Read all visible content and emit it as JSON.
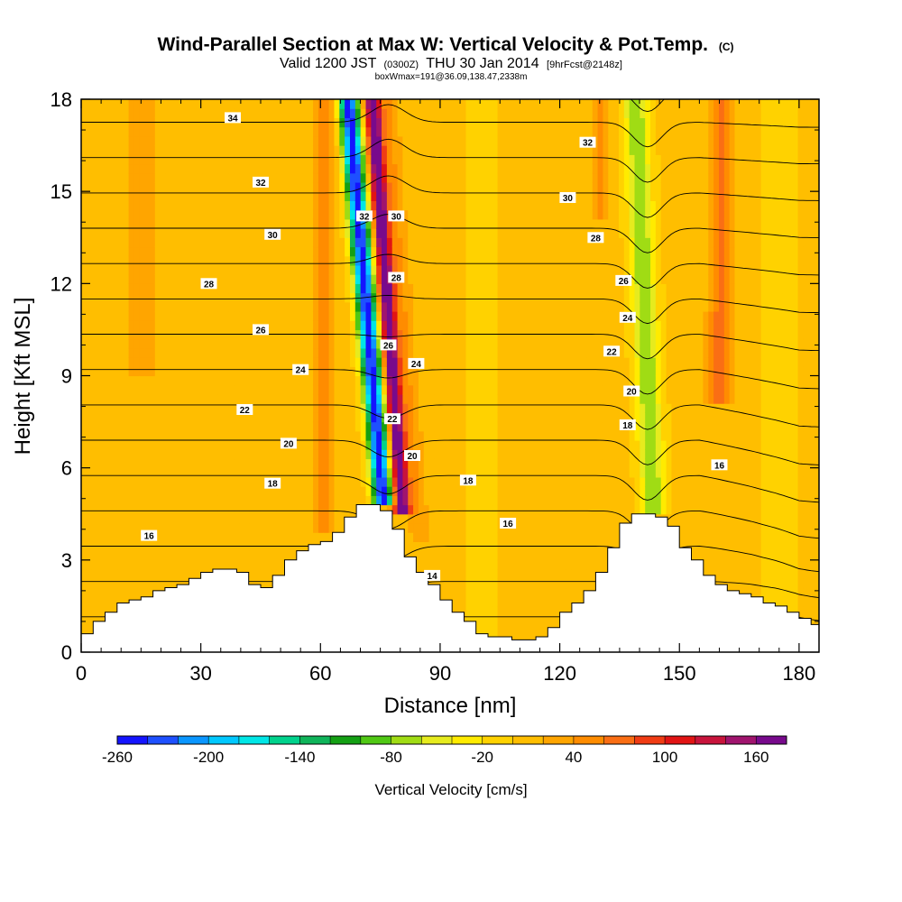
{
  "chart_data": {
    "type": "heatmap",
    "title": "Wind-Parallel Section at Max W: Vertical Velocity & Pot.Temp.",
    "title_mark": "(C)",
    "subtitle_parts": [
      "Valid 1200 JST",
      "(0300Z)",
      "THU 30 Jan 2014",
      "[9hrFcst@2148z]"
    ],
    "subtitle2": "boxWmax=191@36.09,138.47,2338m",
    "xlabel": "Distance [nm]",
    "ylabel": "Height [Kft MSL]",
    "xlim": [
      0,
      185
    ],
    "ylim": [
      0,
      18
    ],
    "x_ticks": [
      "0",
      "30",
      "60",
      "90",
      "120",
      "150",
      "180"
    ],
    "x_tick_values": [
      0,
      30,
      60,
      90,
      120,
      150,
      180
    ],
    "y_ticks": [
      "0",
      "3",
      "6",
      "9",
      "12",
      "15",
      "18"
    ],
    "y_tick_values": [
      0,
      3,
      6,
      9,
      12,
      15,
      18
    ],
    "colorbar": {
      "label": "Vertical Velocity [cm/s]",
      "min": -260,
      "max": 180,
      "step": 20,
      "tick_labels": [
        "-260",
        "-200",
        "-140",
        "-80",
        "-20",
        "40",
        "100",
        "160"
      ],
      "tick_values": [
        -260,
        -200,
        -140,
        -80,
        -20,
        40,
        100,
        160
      ],
      "colors": [
        "#1414ff",
        "#1e50ff",
        "#0a96ff",
        "#00c8ff",
        "#00e6e6",
        "#00d28c",
        "#0fb45a",
        "#14a014",
        "#50c814",
        "#a0dc14",
        "#e6eb1e",
        "#ffeb00",
        "#ffd200",
        "#ffbe00",
        "#ffa500",
        "#ff8c00",
        "#fa6e14",
        "#f03c14",
        "#e11414",
        "#c8143c",
        "#a0146e",
        "#780a8c"
      ]
    },
    "terrain_profile": {
      "x": [
        0,
        3,
        6,
        9,
        12,
        15,
        18,
        21,
        24,
        27,
        30,
        33,
        36,
        39,
        42,
        45,
        48,
        51,
        54,
        57,
        60,
        63,
        66,
        69,
        72,
        75,
        78,
        81,
        84,
        87,
        90,
        93,
        96,
        99,
        102,
        105,
        108,
        111,
        114,
        117,
        120,
        123,
        126,
        129,
        132,
        135,
        138,
        141,
        144,
        147,
        150,
        153,
        156,
        159,
        162,
        165,
        168,
        171,
        174,
        177,
        180,
        183,
        185
      ],
      "y": [
        0.6,
        1.0,
        1.3,
        1.6,
        1.7,
        1.8,
        2.0,
        2.1,
        2.2,
        2.4,
        2.6,
        2.7,
        2.7,
        2.6,
        2.2,
        2.1,
        2.5,
        3.0,
        3.3,
        3.5,
        3.6,
        3.9,
        4.4,
        4.8,
        4.8,
        4.6,
        4.0,
        3.1,
        2.6,
        2.2,
        1.7,
        1.3,
        1.0,
        0.6,
        0.5,
        0.5,
        0.4,
        0.4,
        0.5,
        0.8,
        1.3,
        1.6,
        2.0,
        2.6,
        3.4,
        4.2,
        4.5,
        4.5,
        4.4,
        4.1,
        3.4,
        3.0,
        2.5,
        2.2,
        2.0,
        1.9,
        1.8,
        1.6,
        1.5,
        1.3,
        1.1,
        0.9,
        0.8
      ]
    },
    "w_features": [
      {
        "x": 73,
        "dx": 2.4,
        "slope": -6.0,
        "amp": -260,
        "zmin": 4.8
      },
      {
        "x": 78,
        "dx": 2.0,
        "slope": -5.0,
        "amp": 185,
        "zmin": 4.6
      },
      {
        "x": 82,
        "dx": 2.5,
        "slope": -5.0,
        "amp": 35,
        "zmin": 3.5
      },
      {
        "x": 61,
        "dx": 2.5,
        "slope": 0.0,
        "amp": 55,
        "zmin": 4.0
      },
      {
        "x": 142,
        "dx": 3.0,
        "slope": -3.0,
        "amp": -85,
        "zmin": 4.5
      },
      {
        "x": 160,
        "dx": 3.0,
        "slope": 0.5,
        "amp": 60,
        "zmin": 8.0
      },
      {
        "x": 130,
        "dx": 2.5,
        "slope": 0.0,
        "amp": 40,
        "zmin": 14.0
      },
      {
        "x": 100,
        "dx": 4.0,
        "slope": 0.0,
        "amp": -15,
        "zmin": 0.0
      },
      {
        "x": 15,
        "dx": 6.0,
        "slope": 0.0,
        "amp": 20,
        "zmin": 9.0
      },
      {
        "x": 175,
        "dx": 5.0,
        "slope": 0.0,
        "amp": -10,
        "zmin": 0.0
      }
    ],
    "contour_levels": [
      12,
      13,
      14,
      15,
      16,
      17,
      18,
      19,
      20,
      21,
      22,
      23,
      24,
      25,
      26,
      27,
      28,
      29,
      30,
      31,
      32,
      33,
      34
    ],
    "contour_labels": [
      {
        "text": "34",
        "x": 38,
        "y": 17.4
      },
      {
        "text": "32",
        "x": 45,
        "y": 15.3
      },
      {
        "text": "30",
        "x": 48,
        "y": 13.6
      },
      {
        "text": "28",
        "x": 32,
        "y": 12.0
      },
      {
        "text": "26",
        "x": 45,
        "y": 10.5
      },
      {
        "text": "24",
        "x": 55,
        "y": 9.2
      },
      {
        "text": "22",
        "x": 41,
        "y": 7.9
      },
      {
        "text": "20",
        "x": 52,
        "y": 6.8
      },
      {
        "text": "18",
        "x": 48,
        "y": 5.5
      },
      {
        "text": "16",
        "x": 17,
        "y": 3.8
      },
      {
        "text": "32",
        "x": 71,
        "y": 14.2
      },
      {
        "text": "30",
        "x": 79,
        "y": 14.2
      },
      {
        "text": "28",
        "x": 79,
        "y": 12.2
      },
      {
        "text": "26",
        "x": 77,
        "y": 10.0
      },
      {
        "text": "24",
        "x": 84,
        "y": 9.4
      },
      {
        "text": "22",
        "x": 78,
        "y": 7.6
      },
      {
        "text": "20",
        "x": 83,
        "y": 6.4
      },
      {
        "text": "18",
        "x": 97,
        "y": 5.6
      },
      {
        "text": "16",
        "x": 107,
        "y": 4.2
      },
      {
        "text": "14",
        "x": 88,
        "y": 2.5
      },
      {
        "text": "32",
        "x": 127,
        "y": 16.6
      },
      {
        "text": "30",
        "x": 122,
        "y": 14.8
      },
      {
        "text": "28",
        "x": 129,
        "y": 13.5
      },
      {
        "text": "26",
        "x": 136,
        "y": 12.1
      },
      {
        "text": "24",
        "x": 137,
        "y": 10.9
      },
      {
        "text": "22",
        "x": 133,
        "y": 9.8
      },
      {
        "text": "20",
        "x": 138,
        "y": 8.5
      },
      {
        "text": "18",
        "x": 137,
        "y": 7.4
      },
      {
        "text": "16",
        "x": 160,
        "y": 6.1
      }
    ]
  }
}
